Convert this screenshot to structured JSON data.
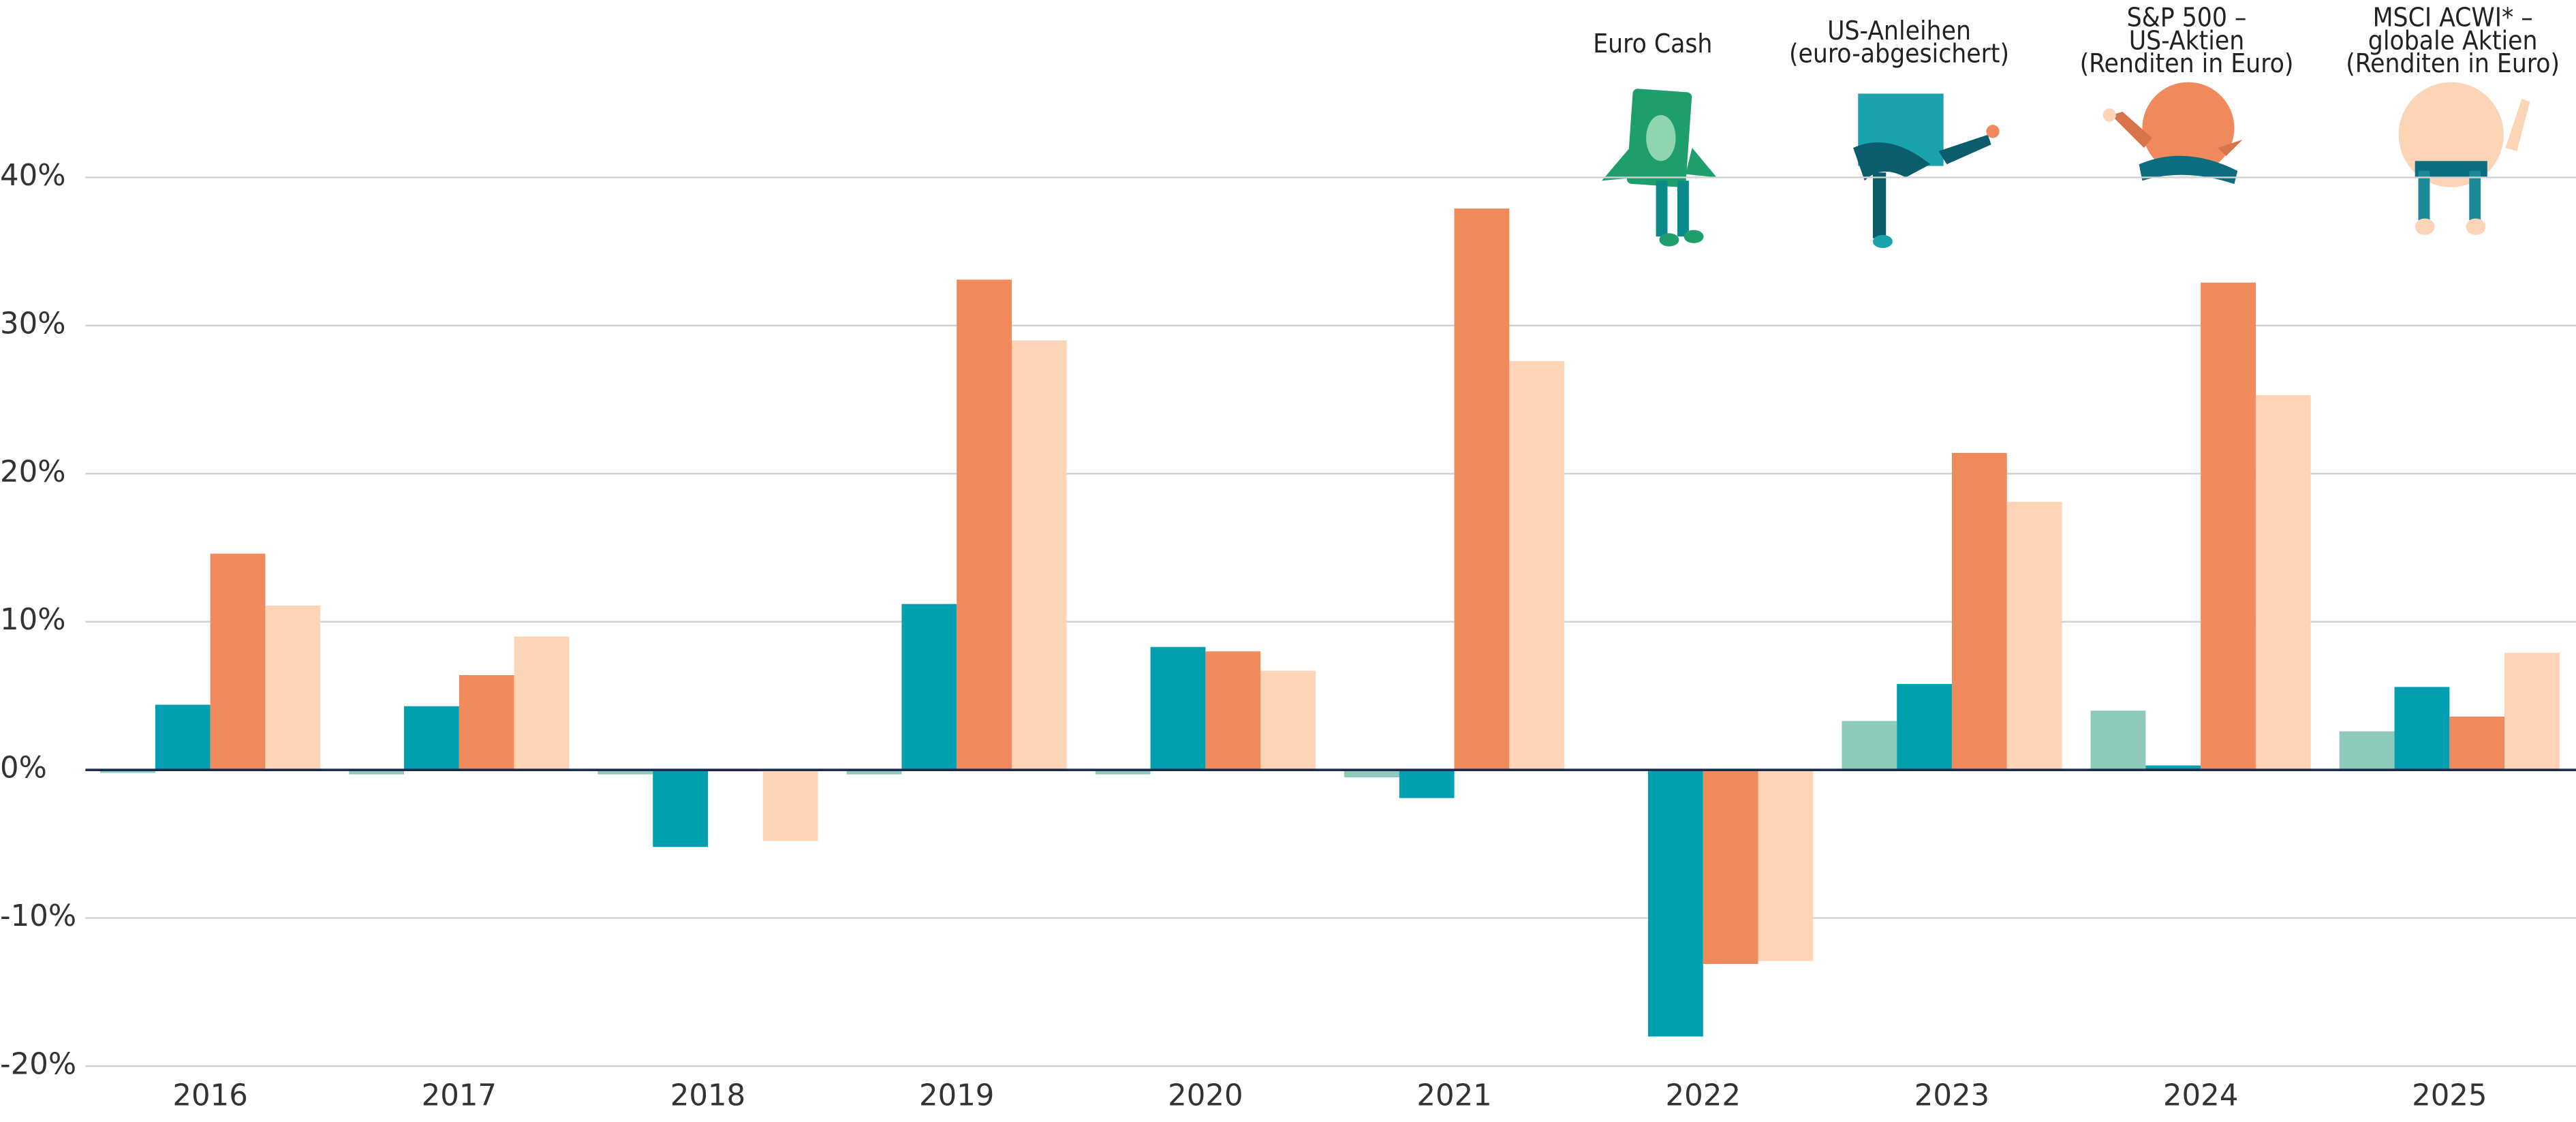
{
  "chart_data": {
    "type": "bar",
    "categories": [
      "2016",
      "2017",
      "2018",
      "2019",
      "2020",
      "2021",
      "2022",
      "2023",
      "2024",
      "2025"
    ],
    "series": [
      {
        "name": "Euro Cash",
        "color": "#8ecabb",
        "values": [
          -0.2,
          -0.3,
          -0.3,
          -0.3,
          -0.3,
          -0.5,
          0.0,
          3.3,
          4.0,
          2.6
        ]
      },
      {
        "name": "US-Anleihen\n(euro-abgesichert)",
        "color": "#00a0b0",
        "values": [
          4.4,
          4.3,
          -5.2,
          11.2,
          8.3,
          -1.9,
          -18.0,
          5.8,
          0.3,
          5.6
        ]
      },
      {
        "name": "S&P 500 –\nUS-Aktien\n(Renditen in Euro)",
        "color": "#f08a5d",
        "values": [
          14.6,
          6.4,
          -0.1,
          33.1,
          8.0,
          37.9,
          -13.1,
          21.4,
          32.9,
          3.6
        ]
      },
      {
        "name": "MSCI ACWI* –\nglobale Aktien\n(Renditen in Euro)",
        "color": "#fdd5b6",
        "values": [
          11.1,
          9.0,
          -4.8,
          29.0,
          6.7,
          27.6,
          -12.9,
          18.1,
          25.3,
          7.9
        ]
      }
    ],
    "ylim": [
      -20,
      40
    ],
    "yticks": [
      {
        "value": -20,
        "label": "-20%"
      },
      {
        "value": -10,
        "label": "-10%"
      },
      {
        "value": 0,
        "label": "0%"
      },
      {
        "value": 10,
        "label": "10%"
      },
      {
        "value": 20,
        "label": "20%"
      },
      {
        "value": 30,
        "label": "30%"
      },
      {
        "value": 40,
        "label": "40%"
      }
    ],
    "grid": true,
    "legend": "top-right"
  }
}
